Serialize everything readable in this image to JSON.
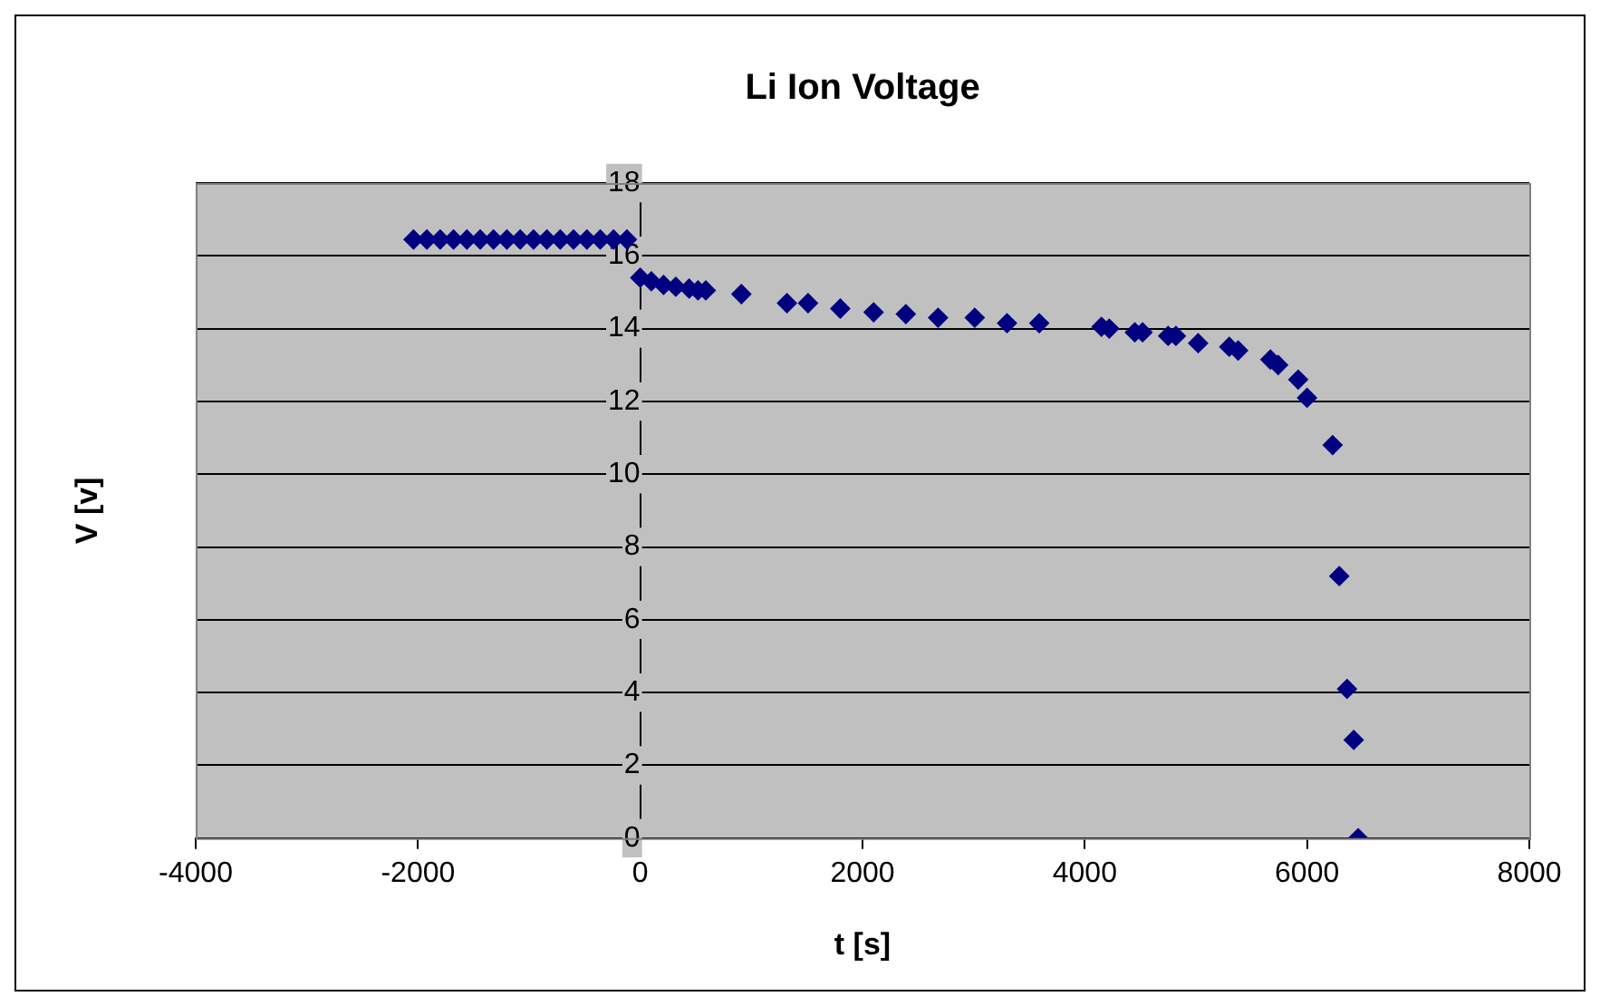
{
  "chart_data": {
    "type": "scatter",
    "title": "Li Ion Voltage",
    "xlabel": "t [s]",
    "ylabel": "V [v]",
    "x": [
      -2040,
      -1920,
      -1800,
      -1680,
      -1560,
      -1440,
      -1320,
      -1200,
      -1080,
      -960,
      -840,
      -720,
      -600,
      -480,
      -360,
      -240,
      -120,
      0,
      100,
      210,
      320,
      440,
      520,
      590,
      910,
      1320,
      1510,
      1800,
      2100,
      2390,
      2680,
      3010,
      3300,
      3590,
      4150,
      4220,
      4450,
      4520,
      4750,
      4820,
      5020,
      5300,
      5380,
      5670,
      5740,
      5920,
      6000,
      6230,
      6290,
      6360,
      6420,
      6460
    ],
    "series": [
      {
        "color": "#000080",
        "values": [
          16.45,
          16.45,
          16.45,
          16.45,
          16.45,
          16.45,
          16.45,
          16.45,
          16.45,
          16.45,
          16.45,
          16.45,
          16.45,
          16.45,
          16.45,
          16.45,
          16.45,
          15.4,
          15.3,
          15.2,
          15.15,
          15.1,
          15.05,
          15.05,
          14.95,
          14.7,
          14.7,
          14.55,
          14.45,
          14.4,
          14.3,
          14.3,
          14.15,
          14.15,
          14.05,
          14.0,
          13.9,
          13.9,
          13.8,
          13.8,
          13.6,
          13.5,
          13.4,
          13.15,
          13.0,
          12.6,
          12.1,
          10.8,
          7.2,
          4.1,
          2.7,
          0
        ]
      }
    ],
    "xlim": [
      -4000,
      8000
    ],
    "xticks": [
      -4000,
      -2000,
      0,
      2000,
      4000,
      6000,
      8000
    ],
    "ylim": [
      0,
      18
    ],
    "yticks": [
      0,
      2,
      4,
      6,
      8,
      10,
      12,
      14,
      16,
      18
    ],
    "grid": "y",
    "marker": "diamond",
    "legend": false
  }
}
